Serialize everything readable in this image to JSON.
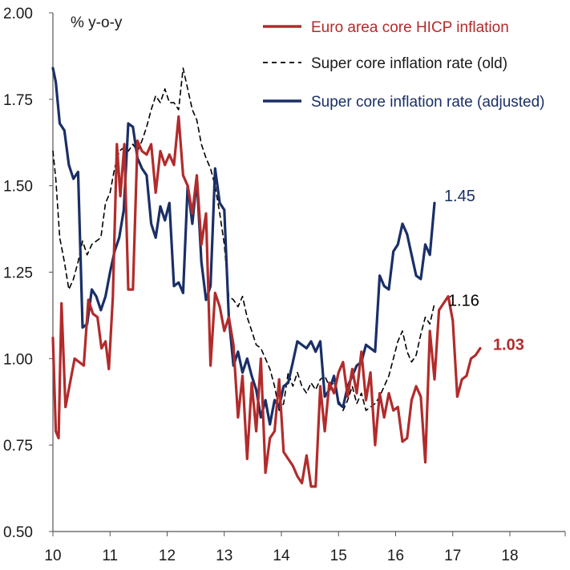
{
  "chart_data": {
    "type": "line",
    "ylabel": "% y-o-y",
    "ylim": [
      0.5,
      2.0
    ],
    "yticks": [
      "0.50",
      "0.75",
      "1.00",
      "1.25",
      "1.50",
      "1.75",
      "2.00"
    ],
    "xlim": [
      2010,
      2018.8
    ],
    "xticks": [
      "10",
      "11",
      "12",
      "13",
      "14",
      "15",
      "16",
      "17",
      "18"
    ],
    "grid": false,
    "legend_position": "top-right",
    "series": [
      {
        "name": "Euro area core HICP inflation",
        "color": "#b22b2b",
        "style": "solid",
        "end_label": "1.03",
        "end_label_bold": true,
        "points": [
          [
            2010.0,
            1.06
          ],
          [
            2010.05,
            0.79
          ],
          [
            2010.1,
            0.77
          ],
          [
            2010.15,
            1.16
          ],
          [
            2010.22,
            0.86
          ],
          [
            2010.3,
            0.93
          ],
          [
            2010.38,
            1.0
          ],
          [
            2010.46,
            0.99
          ],
          [
            2010.54,
            0.98
          ],
          [
            2010.62,
            1.17
          ],
          [
            2010.7,
            1.13
          ],
          [
            2010.78,
            1.12
          ],
          [
            2010.85,
            1.03
          ],
          [
            2010.92,
            1.05
          ],
          [
            2010.98,
            0.97
          ],
          [
            2011.05,
            1.18
          ],
          [
            2011.12,
            1.62
          ],
          [
            2011.18,
            1.47
          ],
          [
            2011.25,
            1.62
          ],
          [
            2011.32,
            1.2
          ],
          [
            2011.4,
            1.2
          ],
          [
            2011.48,
            1.63
          ],
          [
            2011.56,
            1.6
          ],
          [
            2011.64,
            1.59
          ],
          [
            2011.72,
            1.62
          ],
          [
            2011.8,
            1.48
          ],
          [
            2011.88,
            1.6
          ],
          [
            2011.96,
            1.56
          ],
          [
            2012.04,
            1.59
          ],
          [
            2012.12,
            1.56
          ],
          [
            2012.2,
            1.7
          ],
          [
            2012.28,
            1.53
          ],
          [
            2012.36,
            1.5
          ],
          [
            2012.44,
            1.42
          ],
          [
            2012.52,
            1.53
          ],
          [
            2012.6,
            1.33
          ],
          [
            2012.68,
            1.42
          ],
          [
            2012.76,
            0.98
          ],
          [
            2012.84,
            1.19
          ],
          [
            2012.92,
            1.15
          ],
          [
            2013.0,
            1.08
          ],
          [
            2013.08,
            1.12
          ],
          [
            2013.16,
            1.04
          ],
          [
            2013.24,
            0.83
          ],
          [
            2013.32,
            0.95
          ],
          [
            2013.4,
            0.71
          ],
          [
            2013.48,
            0.93
          ],
          [
            2013.56,
            0.79
          ],
          [
            2013.64,
            1.0
          ],
          [
            2013.72,
            0.67
          ],
          [
            2013.8,
            0.77
          ],
          [
            2013.88,
            0.79
          ],
          [
            2013.96,
            0.94
          ],
          [
            2014.04,
            0.73
          ],
          [
            2014.12,
            0.71
          ],
          [
            2014.2,
            0.69
          ],
          [
            2014.28,
            0.66
          ],
          [
            2014.36,
            0.64
          ],
          [
            2014.44,
            0.72
          ],
          [
            2014.52,
            0.63
          ],
          [
            2014.6,
            0.63
          ],
          [
            2014.68,
            0.92
          ],
          [
            2014.76,
            0.79
          ],
          [
            2014.84,
            0.93
          ],
          [
            2014.92,
            0.9
          ],
          [
            2015.0,
            0.96
          ],
          [
            2015.08,
            0.99
          ],
          [
            2015.16,
            0.89
          ],
          [
            2015.24,
            0.97
          ],
          [
            2015.32,
            0.9
          ],
          [
            2015.4,
            1.02
          ],
          [
            2015.48,
            0.88
          ],
          [
            2015.56,
            0.96
          ],
          [
            2015.64,
            0.75
          ],
          [
            2015.72,
            0.9
          ],
          [
            2015.8,
            0.83
          ],
          [
            2015.88,
            0.9
          ],
          [
            2015.96,
            0.85
          ],
          [
            2016.04,
            0.86
          ],
          [
            2016.12,
            0.76
          ],
          [
            2016.2,
            0.77
          ],
          [
            2016.28,
            0.88
          ],
          [
            2016.36,
            0.92
          ],
          [
            2016.44,
            0.89
          ],
          [
            2016.52,
            0.7
          ],
          [
            2016.6,
            1.08
          ],
          [
            2016.68,
            0.94
          ],
          [
            2016.76,
            1.14
          ],
          [
            2016.84,
            1.16
          ],
          [
            2016.92,
            1.18
          ],
          [
            2017.0,
            1.11
          ],
          [
            2017.08,
            0.89
          ],
          [
            2017.16,
            0.94
          ],
          [
            2017.24,
            0.95
          ],
          [
            2017.32,
            1.0
          ],
          [
            2017.4,
            1.01
          ],
          [
            2017.48,
            1.03
          ]
        ]
      },
      {
        "name": "Super core inflation rate (old)",
        "color": "#000000",
        "style": "dashed",
        "end_label": "1.16",
        "end_label_bold": false,
        "points": [
          [
            2010.0,
            1.6
          ],
          [
            2010.05,
            1.52
          ],
          [
            2010.12,
            1.35
          ],
          [
            2010.2,
            1.28
          ],
          [
            2010.28,
            1.2
          ],
          [
            2010.36,
            1.23
          ],
          [
            2010.44,
            1.28
          ],
          [
            2010.52,
            1.34
          ],
          [
            2010.6,
            1.3
          ],
          [
            2010.68,
            1.33
          ],
          [
            2010.76,
            1.34
          ],
          [
            2010.84,
            1.35
          ],
          [
            2010.92,
            1.45
          ],
          [
            2011.0,
            1.48
          ],
          [
            2011.08,
            1.55
          ],
          [
            2011.16,
            1.6
          ],
          [
            2011.24,
            1.61
          ],
          [
            2011.32,
            1.6
          ],
          [
            2011.4,
            1.62
          ],
          [
            2011.48,
            1.6
          ],
          [
            2011.56,
            1.63
          ],
          [
            2011.64,
            1.67
          ],
          [
            2011.72,
            1.72
          ],
          [
            2011.8,
            1.76
          ],
          [
            2011.88,
            1.74
          ],
          [
            2011.96,
            1.78
          ],
          [
            2012.04,
            1.74
          ],
          [
            2012.12,
            1.74
          ],
          [
            2012.2,
            1.72
          ],
          [
            2012.28,
            1.84
          ],
          [
            2012.36,
            1.78
          ],
          [
            2012.44,
            1.72
          ],
          [
            2012.52,
            1.69
          ],
          [
            2012.6,
            1.62
          ],
          [
            2012.68,
            1.58
          ],
          [
            2012.76,
            1.55
          ],
          [
            2012.84,
            1.5
          ],
          [
            2012.92,
            1.42
          ],
          [
            2013.0,
            1.33
          ],
          [
            2013.08,
            1.18
          ],
          [
            2013.16,
            1.17
          ],
          [
            2013.24,
            1.15
          ],
          [
            2013.32,
            1.18
          ],
          [
            2013.4,
            1.12
          ],
          [
            2013.48,
            1.08
          ],
          [
            2013.56,
            1.04
          ],
          [
            2013.64,
            1.03
          ],
          [
            2013.72,
            1.0
          ],
          [
            2013.8,
            0.97
          ],
          [
            2013.88,
            0.92
          ],
          [
            2013.96,
            0.85
          ],
          [
            2014.04,
            0.87
          ],
          [
            2014.12,
            0.96
          ],
          [
            2014.2,
            0.92
          ],
          [
            2014.28,
            0.96
          ],
          [
            2014.36,
            0.92
          ],
          [
            2014.44,
            0.9
          ],
          [
            2014.52,
            0.93
          ],
          [
            2014.6,
            0.91
          ],
          [
            2014.68,
            0.94
          ],
          [
            2014.76,
            0.95
          ],
          [
            2014.84,
            0.92
          ],
          [
            2014.92,
            0.93
          ],
          [
            2015.0,
            0.88
          ],
          [
            2015.08,
            0.85
          ],
          [
            2015.16,
            0.88
          ],
          [
            2015.24,
            0.92
          ],
          [
            2015.32,
            0.87
          ],
          [
            2015.4,
            0.9
          ],
          [
            2015.48,
            0.85
          ],
          [
            2015.56,
            0.86
          ],
          [
            2015.64,
            0.87
          ],
          [
            2015.72,
            0.89
          ],
          [
            2015.8,
            0.92
          ],
          [
            2015.88,
            0.95
          ],
          [
            2015.96,
            1.0
          ],
          [
            2016.04,
            1.05
          ],
          [
            2016.12,
            1.08
          ],
          [
            2016.2,
            1.02
          ],
          [
            2016.28,
            0.99
          ],
          [
            2016.36,
            1.01
          ],
          [
            2016.44,
            1.07
          ],
          [
            2016.52,
            1.12
          ],
          [
            2016.6,
            1.1
          ],
          [
            2016.68,
            1.16
          ]
        ]
      },
      {
        "name": "Super core inflation rate (adjusted)",
        "color": "#1a2f66",
        "style": "solid",
        "end_label": "1.45",
        "end_label_bold": false,
        "points": [
          [
            2010.0,
            1.84
          ],
          [
            2010.05,
            1.8
          ],
          [
            2010.12,
            1.68
          ],
          [
            2010.2,
            1.66
          ],
          [
            2010.28,
            1.56
          ],
          [
            2010.36,
            1.52
          ],
          [
            2010.44,
            1.54
          ],
          [
            2010.52,
            1.09
          ],
          [
            2010.6,
            1.1
          ],
          [
            2010.68,
            1.2
          ],
          [
            2010.76,
            1.18
          ],
          [
            2010.84,
            1.14
          ],
          [
            2010.92,
            1.18
          ],
          [
            2011.0,
            1.25
          ],
          [
            2011.08,
            1.31
          ],
          [
            2011.16,
            1.35
          ],
          [
            2011.24,
            1.43
          ],
          [
            2011.32,
            1.68
          ],
          [
            2011.4,
            1.67
          ],
          [
            2011.48,
            1.58
          ],
          [
            2011.56,
            1.55
          ],
          [
            2011.64,
            1.53
          ],
          [
            2011.72,
            1.39
          ],
          [
            2011.8,
            1.35
          ],
          [
            2011.88,
            1.44
          ],
          [
            2011.96,
            1.4
          ],
          [
            2012.04,
            1.45
          ],
          [
            2012.12,
            1.21
          ],
          [
            2012.2,
            1.22
          ],
          [
            2012.28,
            1.19
          ],
          [
            2012.36,
            1.5
          ],
          [
            2012.44,
            1.39
          ],
          [
            2012.52,
            1.52
          ],
          [
            2012.6,
            1.28
          ],
          [
            2012.68,
            1.17
          ],
          [
            2012.76,
            1.21
          ],
          [
            2012.84,
            1.55
          ],
          [
            2012.92,
            1.45
          ],
          [
            2013.0,
            1.43
          ],
          [
            2013.08,
            1.12
          ],
          [
            2013.16,
            0.98
          ],
          [
            2013.24,
            1.02
          ],
          [
            2013.32,
            0.96
          ],
          [
            2013.4,
            1.0
          ],
          [
            2013.48,
            0.95
          ],
          [
            2013.56,
            0.91
          ],
          [
            2013.64,
            0.83
          ],
          [
            2013.72,
            0.88
          ],
          [
            2013.8,
            0.81
          ],
          [
            2013.88,
            0.88
          ],
          [
            2013.96,
            0.86
          ],
          [
            2014.04,
            0.92
          ],
          [
            2014.12,
            0.93
          ],
          [
            2014.2,
            0.99
          ],
          [
            2014.28,
            1.05
          ],
          [
            2014.36,
            1.04
          ],
          [
            2014.44,
            1.03
          ],
          [
            2014.52,
            1.05
          ],
          [
            2014.6,
            1.02
          ],
          [
            2014.68,
            1.05
          ],
          [
            2014.76,
            0.89
          ],
          [
            2014.84,
            0.91
          ],
          [
            2014.92,
            0.95
          ],
          [
            2015.0,
            0.87
          ],
          [
            2015.08,
            0.86
          ],
          [
            2015.16,
            0.92
          ],
          [
            2015.24,
            0.95
          ],
          [
            2015.32,
            0.98
          ],
          [
            2015.4,
            0.99
          ],
          [
            2015.48,
            1.04
          ],
          [
            2015.56,
            1.03
          ],
          [
            2015.64,
            1.02
          ],
          [
            2015.72,
            1.24
          ],
          [
            2015.8,
            1.21
          ],
          [
            2015.88,
            1.2
          ],
          [
            2015.96,
            1.31
          ],
          [
            2016.04,
            1.33
          ],
          [
            2016.12,
            1.39
          ],
          [
            2016.2,
            1.36
          ],
          [
            2016.28,
            1.3
          ],
          [
            2016.36,
            1.24
          ],
          [
            2016.44,
            1.23
          ],
          [
            2016.52,
            1.33
          ],
          [
            2016.6,
            1.3
          ],
          [
            2016.68,
            1.45
          ]
        ]
      }
    ]
  }
}
